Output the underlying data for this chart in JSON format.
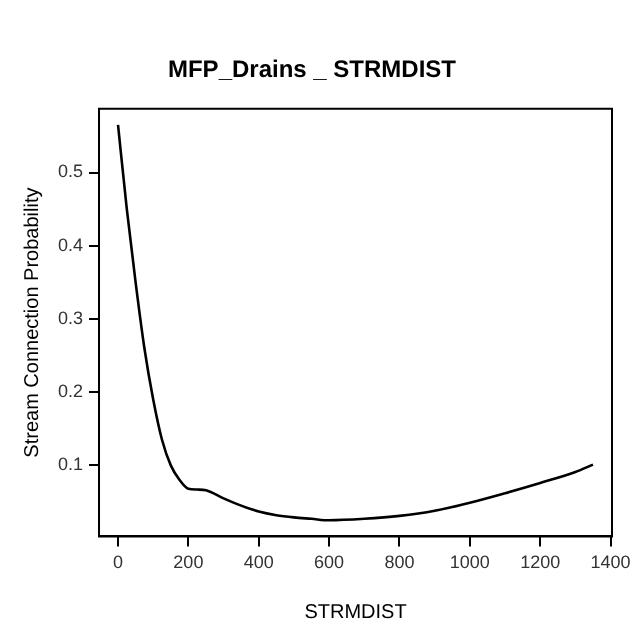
{
  "chart_data": {
    "type": "line",
    "title": "MFP_Drains _ STRMDIST",
    "xlabel": "STRMDIST",
    "ylabel": "Stream Connection Probability",
    "x": [
      0,
      25,
      50,
      75,
      100,
      125,
      150,
      175,
      200,
      225,
      250,
      300,
      350,
      400,
      450,
      500,
      550,
      600,
      700,
      800,
      900,
      1000,
      1100,
      1200,
      1300,
      1350
    ],
    "series": [
      {
        "color": "#000000",
        "values": [
          0.565,
          0.45,
          0.35,
          0.26,
          0.19,
          0.135,
          0.1,
          0.08,
          0.068,
          0.067,
          0.066,
          0.055,
          0.045,
          0.037,
          0.032,
          0.029,
          0.027,
          0.025,
          0.027,
          0.031,
          0.038,
          0.049,
          0.062,
          0.076,
          0.091,
          0.101
        ]
      }
    ],
    "xlim": [
      -54,
      1404
    ],
    "xticks": [
      0,
      200,
      400,
      600,
      800,
      1000,
      1200,
      1400
    ],
    "ylim": [
      0.003,
      0.587
    ],
    "yticks": [
      0.1,
      0.2,
      0.3,
      0.4,
      0.5
    ],
    "grid": false,
    "legend": false,
    "marker": "none",
    "line_style": "solid"
  }
}
